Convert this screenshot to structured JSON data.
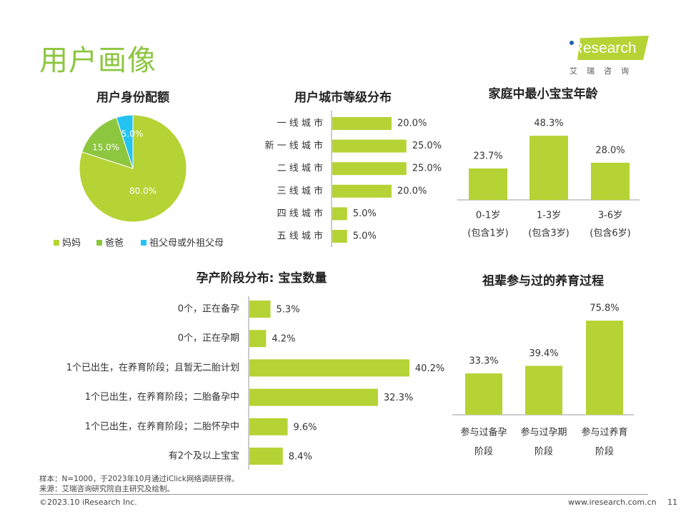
{
  "header": {
    "title": "用户画像",
    "logo": {
      "text": "iResearch",
      "sub": "艾瑞咨询"
    }
  },
  "colors": {
    "bar": "#b5d334",
    "pie": [
      "#b5d334",
      "#8dc63f",
      "#22c3f0"
    ],
    "title": "#8cc63f"
  },
  "chart_data": [
    {
      "id": "identity",
      "type": "pie",
      "title": "用户身份配额",
      "categories": [
        "妈妈",
        "爸爸",
        "祖父母或外祖父母"
      ],
      "values": [
        80.0,
        15.0,
        5.0
      ],
      "labels": [
        "80.0%",
        "15.0%",
        "5.0%"
      ],
      "legend": "bottom"
    },
    {
      "id": "city",
      "type": "bar",
      "orientation": "horizontal",
      "title": "用户城市等级分布",
      "categories": [
        "一线城市",
        "新一线城市",
        "二线城市",
        "三线城市",
        "四线城市",
        "五线城市"
      ],
      "values": [
        20.0,
        25.0,
        25.0,
        20.0,
        5.0,
        5.0
      ],
      "labels": [
        "20.0%",
        "25.0%",
        "25.0%",
        "20.0%",
        "5.0%",
        "5.0%"
      ]
    },
    {
      "id": "age",
      "type": "bar",
      "title": "家庭中最小宝宝年龄",
      "categories": [
        [
          "0-1岁",
          "(包含1岁)"
        ],
        [
          "1-3岁",
          "(包含3岁)"
        ],
        [
          "3-6岁",
          "(包含6岁)"
        ]
      ],
      "values": [
        23.7,
        48.3,
        28.0
      ],
      "labels": [
        "23.7%",
        "48.3%",
        "28.0%"
      ]
    },
    {
      "id": "pregnancy",
      "type": "bar",
      "orientation": "horizontal",
      "title": "孕产阶段分布: 宝宝数量",
      "categories": [
        "0个，正在备孕",
        "0个，正在孕期",
        "1个已出生，在养育阶段；且暂无二胎计划",
        "1个已出生，在养育阶段；二胎备孕中",
        "1个已出生，在养育阶段；二胎怀孕中",
        "有2个及以上宝宝"
      ],
      "values": [
        5.3,
        4.2,
        40.2,
        32.3,
        9.6,
        8.4
      ],
      "labels": [
        "5.3%",
        "4.2%",
        "40.2%",
        "32.3%",
        "9.6%",
        "8.4%"
      ]
    },
    {
      "id": "grandparent",
      "type": "bar",
      "title": "祖辈参与过的养育过程",
      "categories": [
        [
          "参与过备孕",
          "阶段"
        ],
        [
          "参与过孕期",
          "阶段"
        ],
        [
          "参与过养育",
          "阶段"
        ]
      ],
      "values": [
        33.3,
        39.4,
        75.8
      ],
      "labels": [
        "33.3%",
        "39.4%",
        "75.8%"
      ]
    }
  ],
  "footer": {
    "sample": "样本：N=1000，于2023年10月通过iClick网络调研获得。",
    "source": "来源：艾瑞咨询研究院自主研究及绘制。",
    "copyright": "©2023.10 iResearch Inc.",
    "url": "www.iresearch.com.cn",
    "page": "11"
  }
}
